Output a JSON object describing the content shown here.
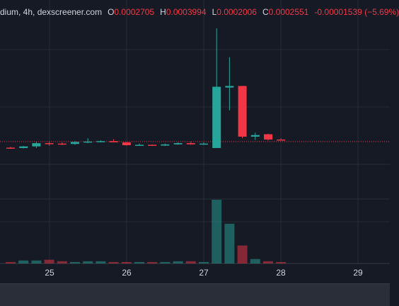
{
  "legend": {
    "symbol_interval": "dium, 4h, dexscreener.com",
    "open_label": "O",
    "open_value": "0.0002705",
    "high_label": "H",
    "high_value": "0.0003994",
    "low_label": "L",
    "low_value": "0.0002006",
    "close_label": "C",
    "close_value": "0.0002551",
    "change": "-0.00001539 (−5.69%)"
  },
  "colors": {
    "background": "#161a25",
    "up": "#26a69a",
    "down": "#f23645",
    "grid": "#262a35",
    "price_line": "#f23645"
  },
  "chart_data": {
    "type": "candlestick",
    "x_ticks": [
      "25",
      "26",
      "27",
      "28",
      "29"
    ],
    "candles": [
      {
        "o": 0.0002525,
        "h": 0.0002535,
        "l": 0.000251,
        "c": 0.0002515
      },
      {
        "o": 0.000252,
        "h": 0.0002545,
        "l": 0.0002515,
        "c": 0.000254
      },
      {
        "o": 0.000254,
        "h": 0.00026,
        "l": 0.000252,
        "c": 0.000258
      },
      {
        "o": 0.000258,
        "h": 0.00026,
        "l": 0.000255,
        "c": 0.0002575
      },
      {
        "o": 0.0002575,
        "h": 0.000259,
        "l": 0.0002555,
        "c": 0.000257
      },
      {
        "o": 0.000257,
        "h": 0.0002605,
        "l": 0.000256,
        "c": 0.0002595
      },
      {
        "o": 0.0002595,
        "h": 0.000264,
        "l": 0.000258,
        "c": 0.00026
      },
      {
        "o": 0.00026,
        "h": 0.0002615,
        "l": 0.000259,
        "c": 0.0002605
      },
      {
        "o": 0.0002605,
        "h": 0.000263,
        "l": 0.0002595,
        "c": 0.000259
      },
      {
        "o": 0.000259,
        "h": 0.0002595,
        "l": 0.000255,
        "c": 0.0002555
      },
      {
        "o": 0.0002555,
        "h": 0.0002575,
        "l": 0.000255,
        "c": 0.000256
      },
      {
        "o": 0.000256,
        "h": 0.0002565,
        "l": 0.0002545,
        "c": 0.000255
      },
      {
        "o": 0.000255,
        "h": 0.0002575,
        "l": 0.0002545,
        "c": 0.0002565
      },
      {
        "o": 0.0002565,
        "h": 0.000259,
        "l": 0.000256,
        "c": 0.000258
      },
      {
        "o": 0.000258,
        "h": 0.00026,
        "l": 0.000256,
        "c": 0.0002565
      },
      {
        "o": 0.0002565,
        "h": 0.000259,
        "l": 0.000256,
        "c": 0.0002575
      },
      {
        "o": 0.000252,
        "h": 0.0003994,
        "l": 0.000252,
        "c": 0.0003275
      },
      {
        "o": 0.0003265,
        "h": 0.000364,
        "l": 0.0002985,
        "c": 0.0003285
      },
      {
        "o": 0.0003285,
        "h": 0.0003285,
        "l": 0.000264,
        "c": 0.000266
      },
      {
        "o": 0.000266,
        "h": 0.000271,
        "l": 0.000262,
        "c": 0.000268
      },
      {
        "o": 0.000269,
        "h": 0.0002695,
        "l": 0.0002615,
        "c": 0.0002625
      },
      {
        "o": 0.0002625,
        "h": 0.000264,
        "l": 0.000261,
        "c": 0.0002615
      }
    ],
    "volumes": [
      2,
      4,
      4,
      5,
      3,
      2,
      3,
      3,
      2,
      2,
      2,
      2,
      2,
      3,
      3,
      2,
      85,
      53,
      24,
      6,
      3,
      2
    ],
    "current_price": 0.00026
  }
}
